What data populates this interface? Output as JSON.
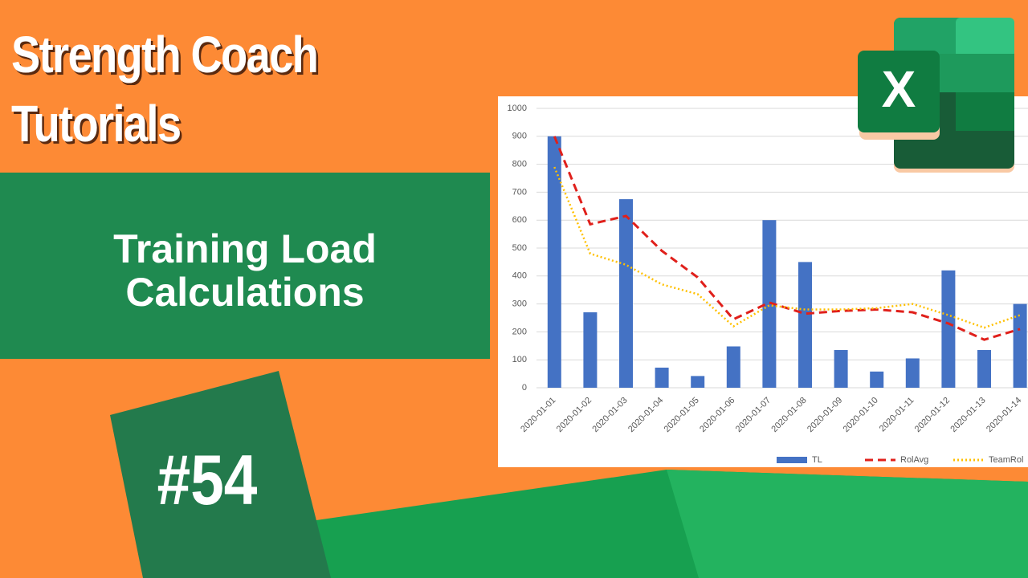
{
  "header": {
    "title_lines": [
      "Strength Coach",
      "Tutorials"
    ],
    "subtitle_lines": [
      "Training Load",
      "Calculations"
    ],
    "episode": "#54",
    "logo_letter": "X"
  },
  "chart_data": {
    "type": "bar",
    "categories": [
      "2020-01-01",
      "2020-01-02",
      "2020-01-03",
      "2020-01-04",
      "2020-01-05",
      "2020-01-06",
      "2020-01-07",
      "2020-01-08",
      "2020-01-09",
      "2020-01-10",
      "2020-01-11",
      "2020-01-12",
      "2020-01-13",
      "2020-01-14"
    ],
    "series": [
      {
        "name": "TL",
        "type": "bar",
        "color": "#4472c4",
        "values": [
          900,
          270,
          675,
          72,
          42,
          148,
          600,
          450,
          135,
          58,
          105,
          420,
          135,
          300
        ]
      },
      {
        "name": "RolAvg",
        "type": "line",
        "dash": "dashed",
        "color": "#e0201b",
        "values": [
          900,
          585,
          615,
          490,
          395,
          245,
          305,
          265,
          275,
          280,
          270,
          230,
          172,
          210
        ]
      },
      {
        "name": "TeamRol",
        "type": "line",
        "dash": "dotted",
        "color": "#ffc000",
        "values": [
          790,
          480,
          440,
          370,
          335,
          220,
          295,
          280,
          280,
          285,
          300,
          260,
          215,
          260
        ]
      }
    ],
    "ylim": [
      0,
      1000
    ],
    "yticks": [
      0,
      100,
      200,
      300,
      400,
      500,
      600,
      700,
      800,
      900,
      1000
    ],
    "grid": true,
    "legend": "bottom"
  }
}
